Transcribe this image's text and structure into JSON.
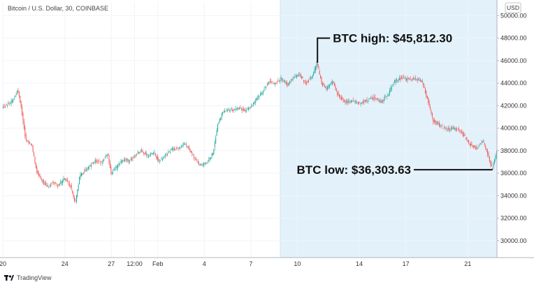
{
  "chart_data": {
    "type": "candlestick",
    "symbol_label": "Bitcoin / U.S. Dollar, 30, COINBASE",
    "currency": "USD",
    "ylim": [
      28500,
      51200
    ],
    "y_ticks": [
      30000,
      32000,
      34000,
      36000,
      38000,
      40000,
      42000,
      44000,
      46000,
      48000,
      50000
    ],
    "y_tick_labels": [
      "30000.00",
      "32000.00",
      "34000.00",
      "36000.00",
      "38000.00",
      "40000.00",
      "42000.00",
      "44000.00",
      "46000.00",
      "48000.00",
      "50000.00"
    ],
    "x_ticks": [
      {
        "label": "20",
        "x": 20.0
      },
      {
        "label": "24",
        "x": 24.0
      },
      {
        "label": "27",
        "x": 27.0
      },
      {
        "label": "12:00",
        "x": 28.5
      },
      {
        "label": "Feb",
        "x": 30.0
      },
      {
        "label": "4",
        "x": 33.0
      },
      {
        "label": "7",
        "x": 36.0
      },
      {
        "label": "10",
        "x": 39.0
      },
      {
        "label": "14",
        "x": 43.0
      },
      {
        "label": "17",
        "x": 46.0
      },
      {
        "label": "21",
        "x": 50.0
      }
    ],
    "xlim": [
      20.0,
      51.88
    ],
    "highlight": {
      "start": 37.9,
      "end": 51.88,
      "color": "#e3f1fb"
    },
    "price_path": [
      [
        20.0,
        41900
      ],
      [
        20.6,
        42300
      ],
      [
        21.0,
        43400
      ],
      [
        21.2,
        42000
      ],
      [
        21.5,
        39000
      ],
      [
        21.9,
        38500
      ],
      [
        22.2,
        36200
      ],
      [
        22.6,
        35300
      ],
      [
        22.9,
        34700
      ],
      [
        23.3,
        35200
      ],
      [
        23.6,
        34900
      ],
      [
        24.0,
        35500
      ],
      [
        24.4,
        34900
      ],
      [
        24.7,
        33300
      ],
      [
        25.0,
        35800
      ],
      [
        25.3,
        36200
      ],
      [
        25.7,
        36700
      ],
      [
        26.0,
        37100
      ],
      [
        26.4,
        36900
      ],
      [
        26.8,
        37800
      ],
      [
        27.0,
        36000
      ],
      [
        27.4,
        36600
      ],
      [
        27.8,
        37200
      ],
      [
        28.2,
        37100
      ],
      [
        28.6,
        37600
      ],
      [
        29.0,
        38000
      ],
      [
        29.4,
        37500
      ],
      [
        29.8,
        37800
      ],
      [
        30.1,
        37000
      ],
      [
        30.5,
        37500
      ],
      [
        30.9,
        38100
      ],
      [
        31.3,
        38200
      ],
      [
        31.7,
        38600
      ],
      [
        32.0,
        38300
      ],
      [
        32.4,
        37300
      ],
      [
        32.8,
        36700
      ],
      [
        33.2,
        36900
      ],
      [
        33.6,
        37800
      ],
      [
        33.9,
        40400
      ],
      [
        34.2,
        41400
      ],
      [
        34.5,
        41700
      ],
      [
        34.9,
        41600
      ],
      [
        35.3,
        41800
      ],
      [
        35.7,
        41500
      ],
      [
        36.0,
        41900
      ],
      [
        36.4,
        42600
      ],
      [
        36.8,
        43300
      ],
      [
        37.2,
        44100
      ],
      [
        37.6,
        44000
      ],
      [
        38.0,
        44400
      ],
      [
        38.4,
        43800
      ],
      [
        38.8,
        44500
      ],
      [
        39.2,
        44700
      ],
      [
        39.6,
        44000
      ],
      [
        40.0,
        44600
      ],
      [
        40.3,
        45812
      ],
      [
        40.6,
        44000
      ],
      [
        40.9,
        43500
      ],
      [
        41.3,
        44100
      ],
      [
        41.7,
        42800
      ],
      [
        42.1,
        42300
      ],
      [
        42.6,
        42400
      ],
      [
        43.0,
        42200
      ],
      [
        43.5,
        42500
      ],
      [
        44.0,
        42700
      ],
      [
        44.4,
        42300
      ],
      [
        44.9,
        43000
      ],
      [
        45.3,
        44200
      ],
      [
        45.8,
        44500
      ],
      [
        46.2,
        44300
      ],
      [
        46.7,
        44400
      ],
      [
        47.1,
        44100
      ],
      [
        47.5,
        42200
      ],
      [
        47.8,
        40600
      ],
      [
        48.2,
        40300
      ],
      [
        48.6,
        39900
      ],
      [
        49.0,
        40000
      ],
      [
        49.4,
        39900
      ],
      [
        49.8,
        39300
      ],
      [
        50.2,
        38500
      ],
      [
        50.6,
        38200
      ],
      [
        51.0,
        38900
      ],
      [
        51.3,
        37700
      ],
      [
        51.6,
        36303
      ],
      [
        51.88,
        37800
      ]
    ],
    "annotations": [
      {
        "text": "BTC high: $45,812.30",
        "x": 40.3,
        "y": 45812.3
      },
      {
        "text": "BTC low: $36,303.63",
        "x": 51.6,
        "y": 36303.63
      }
    ],
    "up_color": "#26a69a",
    "down_color": "#ef5350"
  },
  "footer": {
    "brand": "TradingView"
  }
}
